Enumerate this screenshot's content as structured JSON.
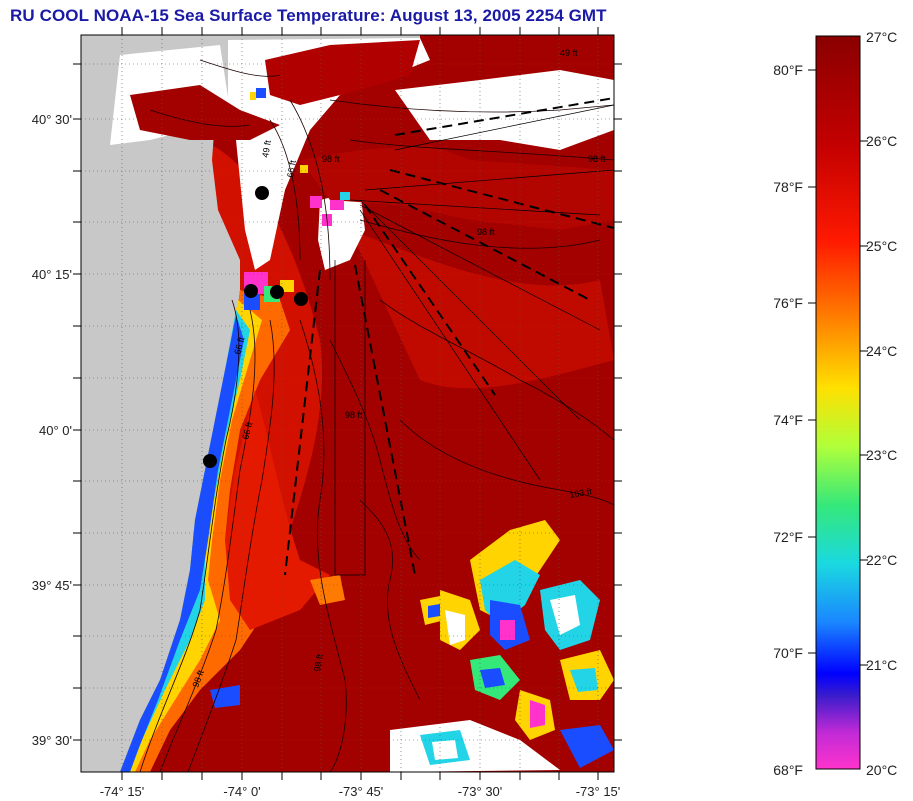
{
  "title": "RU COOL  NOAA-15  Sea Surface Temperature:  August 13, 2005 2254 GMT",
  "map": {
    "lat_labels": [
      "40° 30'",
      "40° 15'",
      "40° 0'",
      "39° 45'",
      "39° 30'"
    ],
    "lon_labels": [
      "-74° 15'",
      "-74° 0'",
      "-73° 45'",
      "-73° 30'",
      "-73° 15'"
    ],
    "contour_labels": [
      "49 ft",
      "98 ft",
      "66 ft",
      "98 ft",
      "49 ft",
      "98 ft",
      "66 ft",
      "98 ft",
      "66 ft",
      "163 ft",
      "98 ft",
      "98 ft"
    ],
    "station_count_note": "",
    "colors": {
      "land": "#c8c8c8",
      "ocean_warm": "#a30000",
      "ocean_mid": "#e01a00",
      "coastal_warm": "#ff6600",
      "coastal_cool": "#22d4e6",
      "cold_patch": "#1a4dff",
      "magenta": "#ff33cc",
      "cloud": "#ffffff"
    }
  },
  "colorbar": {
    "fahrenheit": [
      "80°F",
      "78°F",
      "76°F",
      "74°F",
      "72°F",
      "70°F",
      "68°F"
    ],
    "celsius": [
      "27°C",
      "26°C",
      "25°C",
      "24°C",
      "23°C",
      "22°C",
      "21°C",
      "20°C"
    ]
  }
}
